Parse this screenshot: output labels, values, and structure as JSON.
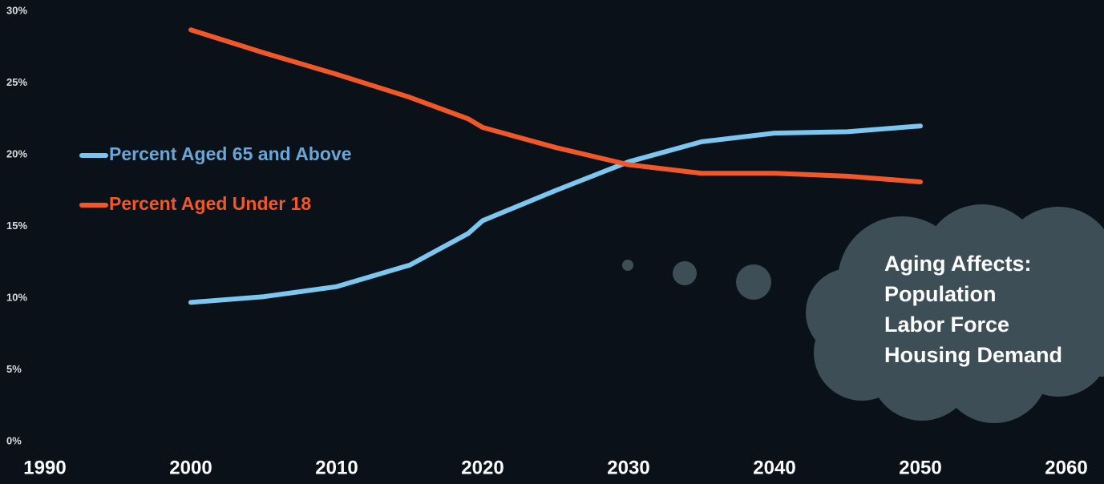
{
  "chart_data": {
    "type": "line",
    "x": [
      2000,
      2005,
      2010,
      2015,
      2019,
      2020,
      2025,
      2030,
      2035,
      2040,
      2045,
      2050
    ],
    "series": [
      {
        "name": "Percent Aged 65 and Above",
        "color": "#7cc6ef",
        "values": [
          9.7,
          10.1,
          10.8,
          12.3,
          14.5,
          15.4,
          17.5,
          19.5,
          20.9,
          21.5,
          21.6,
          22.0
        ]
      },
      {
        "name": "Percent Aged Under 18",
        "color": "#f0582a",
        "values": [
          28.7,
          27.1,
          25.6,
          24.0,
          22.5,
          21.9,
          20.5,
          19.3,
          18.7,
          18.7,
          18.5,
          18.1
        ]
      }
    ],
    "xlim": [
      1990,
      2060
    ],
    "xticks": [
      1990,
      2000,
      2010,
      2020,
      2030,
      2040,
      2050,
      2060
    ],
    "ylim": [
      0,
      30
    ],
    "yticks": [
      {
        "value": 0,
        "label": "0%"
      },
      {
        "value": 5,
        "label": "5%"
      },
      {
        "value": 10,
        "label": "10%"
      },
      {
        "value": 15,
        "label": "15%"
      },
      {
        "value": 20,
        "label": "20%"
      },
      {
        "value": 25,
        "label": "25%"
      },
      {
        "value": 30,
        "label": "30%"
      }
    ],
    "legend": "left",
    "annotation": [
      "Aging Affects:",
      "Population",
      "Labor Force",
      "Housing Demand"
    ]
  }
}
